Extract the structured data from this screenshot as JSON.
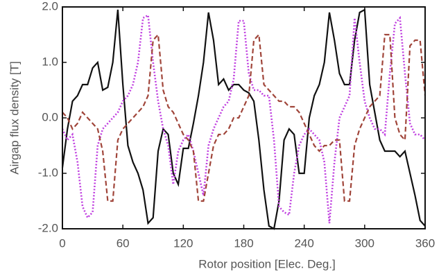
{
  "chart_data": {
    "type": "line",
    "xlabel": "Rotor position [Elec. Deg.]",
    "ylabel": "Airgap flux density [T]",
    "x": [
      0,
      5,
      10,
      15,
      20,
      25,
      30,
      35,
      40,
      45,
      50,
      55,
      60,
      65,
      70,
      75,
      80,
      85,
      90,
      95,
      100,
      105,
      110,
      115,
      120,
      125,
      130,
      135,
      140,
      145,
      150,
      155,
      160,
      165,
      170,
      175,
      180,
      185,
      190,
      195,
      200,
      205,
      210,
      215,
      220,
      225,
      230,
      235,
      240,
      245,
      250,
      255,
      260,
      265,
      270,
      275,
      280,
      285,
      290,
      295,
      300,
      305,
      310,
      315,
      320,
      325,
      330,
      335,
      340,
      345,
      350,
      355,
      360
    ],
    "series": [
      {
        "color": "#111111",
        "style": "solid",
        "values": [
          -0.9,
          -0.2,
          0.3,
          0.4,
          0.6,
          0.6,
          0.9,
          1.0,
          0.5,
          0.55,
          1.0,
          1.95,
          0.6,
          -0.5,
          -0.8,
          -1.0,
          -1.3,
          -1.9,
          -1.8,
          -0.6,
          -0.2,
          -0.3,
          -1.0,
          -1.2,
          -0.55,
          -0.55,
          -0.1,
          0.4,
          1.0,
          1.9,
          1.4,
          0.6,
          0.7,
          0.5,
          0.6,
          0.6,
          0.5,
          0.45,
          0.3,
          -0.4,
          -1.3,
          -1.95,
          -2.0,
          -1.5,
          -0.4,
          -0.2,
          -0.3,
          -1.0,
          -1.0,
          0.0,
          0.4,
          0.6,
          1.0,
          1.9,
          1.4,
          0.8,
          0.6,
          0.6,
          1.4,
          1.9,
          1.95,
          0.6,
          0.1,
          -0.4,
          -0.6,
          -0.6,
          -0.6,
          -0.7,
          -0.6,
          -1.0,
          -1.4,
          -1.85,
          -1.95
        ]
      },
      {
        "color": "#c040e0",
        "style": "dotted",
        "values": [
          -0.2,
          -0.4,
          -0.3,
          -0.8,
          -1.6,
          -1.8,
          -1.7,
          -0.5,
          -0.2,
          -0.1,
          0.0,
          0.1,
          0.3,
          0.4,
          0.6,
          1.0,
          1.8,
          1.85,
          1.0,
          0.3,
          -0.2,
          -0.5,
          -1.2,
          -0.6,
          -0.4,
          -0.3,
          -0.6,
          -1.0,
          -1.4,
          -0.5,
          -0.2,
          0.0,
          0.2,
          0.3,
          0.7,
          1.75,
          1.75,
          0.8,
          0.5,
          0.5,
          0.4,
          0.4,
          -0.4,
          -1.6,
          -1.7,
          -1.75,
          -1.0,
          -0.5,
          -0.3,
          -0.2,
          -0.3,
          -0.4,
          -0.8,
          -1.9,
          -0.8,
          0.0,
          0.2,
          0.4,
          1.8,
          1.0,
          0.3,
          0.0,
          -0.2,
          -0.2,
          -0.3,
          0.8,
          1.7,
          1.8,
          0.8,
          -0.1,
          -0.3,
          -0.3,
          -0.4
        ]
      },
      {
        "color": "#a0453a",
        "style": "dashed",
        "values": [
          0.1,
          0.0,
          -0.2,
          -0.1,
          0.1,
          0.0,
          -0.1,
          -0.2,
          -0.6,
          -1.5,
          -1.5,
          -0.4,
          -0.2,
          -0.1,
          0.0,
          0.1,
          0.2,
          0.4,
          1.4,
          1.5,
          0.5,
          0.2,
          0.1,
          -0.1,
          -0.3,
          -0.4,
          -0.6,
          -1.5,
          -1.5,
          -1.0,
          -0.5,
          -0.3,
          -0.3,
          -0.2,
          0.0,
          0.0,
          0.2,
          0.4,
          1.4,
          1.5,
          0.6,
          0.5,
          0.4,
          0.3,
          0.3,
          0.2,
          0.2,
          0.1,
          -0.1,
          -0.3,
          -0.5,
          -0.6,
          -0.5,
          -0.5,
          -0.4,
          -0.4,
          -1.5,
          -1.5,
          -0.5,
          -0.2,
          0.0,
          0.2,
          0.3,
          0.4,
          1.5,
          1.5,
          0.0,
          -0.3,
          -0.4,
          1.3,
          1.4,
          1.4,
          0.4
        ]
      }
    ],
    "xlim": [
      0,
      360
    ],
    "xticks": [
      0,
      60,
      120,
      180,
      240,
      300,
      360
    ],
    "ylim": [
      -2,
      2
    ],
    "yticks": [
      {
        "value": -2,
        "label": "-2.0"
      },
      {
        "value": -1,
        "label": "-1.0"
      },
      {
        "value": 0,
        "label": "0.0"
      },
      {
        "value": 1,
        "label": "1.0"
      },
      {
        "value": 2,
        "label": "2.0"
      }
    ]
  }
}
